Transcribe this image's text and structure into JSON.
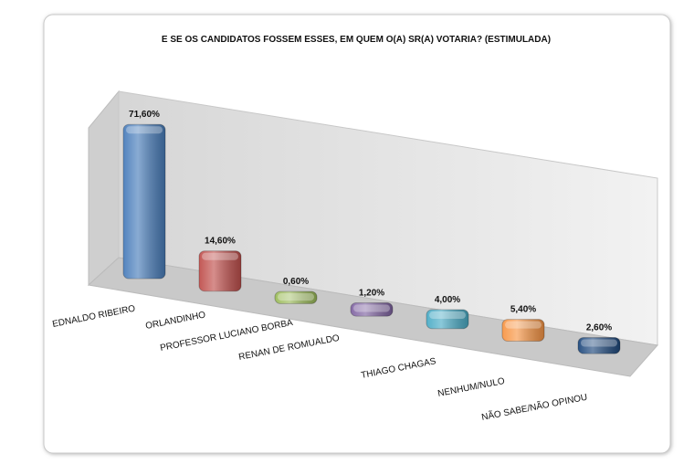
{
  "chart_data": {
    "type": "bar3d",
    "title": "E SE OS CANDIDATOS FOSSEM ESSES, EM QUEM O(A) SR(A) VOTARIA? (ESTIMULADA)",
    "categories": [
      "EDNALDO RIBEIRO",
      "ORLANDINHO",
      "PROFESSOR LUCIANO BORBA",
      "RENAN DE ROMUALDO",
      "THIAGO CHAGAS",
      "NENHUM/NULO",
      "NÃO SABE/NÃO OPINOU"
    ],
    "values": [
      71.6,
      14.6,
      0.6,
      1.2,
      4.0,
      5.4,
      2.6
    ],
    "value_labels": [
      "71,60%",
      "14,60%",
      "0,60%",
      "1,20%",
      "4,00%",
      "5,40%",
      "2,60%"
    ],
    "colors": [
      "#4a7ebb",
      "#c0504d",
      "#9bbb59",
      "#8064a2",
      "#4bacc6",
      "#f79646",
      "#1f497d"
    ]
  }
}
